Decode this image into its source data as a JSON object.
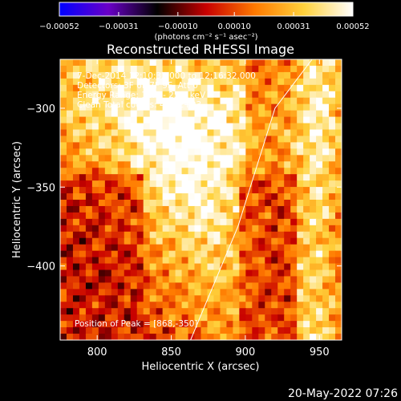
{
  "chart_data": {
    "type": "heatmap",
    "title": "Reconstructed RHESSI Image",
    "xlabel": "Heliocentric X (arcsec)",
    "ylabel": "Heliocentric Y (arcsec)",
    "xlim": [
      775,
      965
    ],
    "ylim": [
      -447,
      -269
    ],
    "x_ticks": [
      800,
      850,
      900,
      950
    ],
    "x_tick_labels": [
      "800",
      "850",
      "900",
      "950"
    ],
    "y_ticks": [
      -300,
      -350,
      -400
    ],
    "y_tick_labels": [
      "−300",
      "−350",
      "−400"
    ],
    "colorbar": {
      "label": "(photons cm⁻² s⁻¹ asec⁻²)",
      "range": [
        -0.00052,
        0.00052
      ],
      "ticks": [
        -0.00052,
        -0.00031,
        -0.0001,
        0.0001,
        0.00031,
        0.00052
      ],
      "tick_labels": [
        "−0.00052",
        "−0.00031",
        "−0.00010",
        "0.00010",
        "0.00031",
        "0.00052"
      ],
      "colormap": [
        "#0000ff",
        "#6a00c8",
        "#000000",
        "#c80000",
        "#ff7a00",
        "#ffd23c",
        "#ffffff"
      ]
    },
    "annotations": [
      "7-Dec-2014 12:10:32.000 to 12:16:32.000",
      "Detectors: 3F 6F 7F 9F, Att 0",
      "Energy Range: 12.0 - 25.0 keV",
      "Clean     Total counts: 4.25E+03"
    ],
    "peak_label": "Position of Peak = [868,-350]",
    "peak": [
      868,
      -350
    ],
    "limb_line": [
      [
        863,
        -447
      ],
      [
        895,
        -375
      ],
      [
        920,
        -300
      ],
      [
        945,
        -269
      ]
    ]
  },
  "timestamp": "20-May-2022 07:26"
}
